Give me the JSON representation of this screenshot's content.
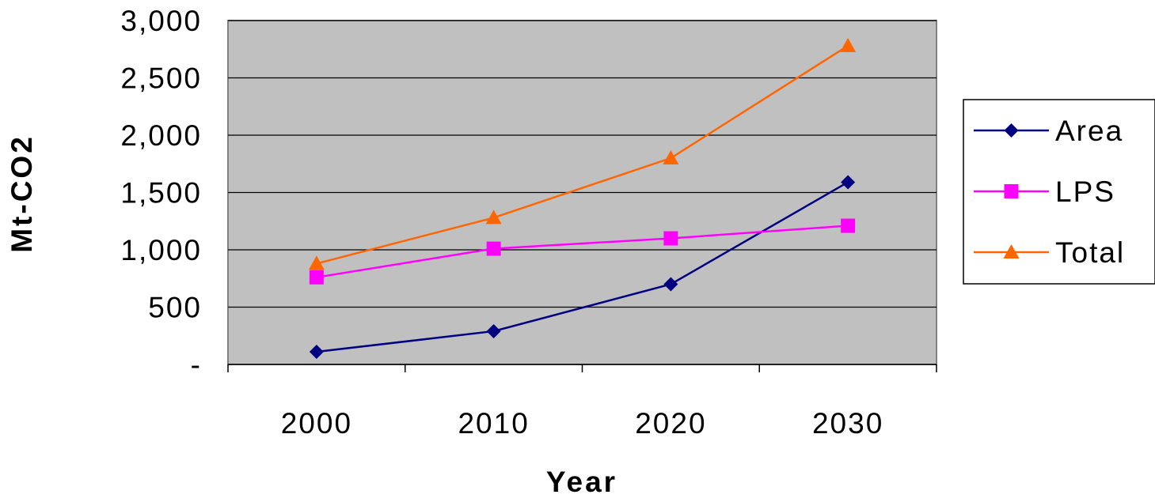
{
  "chart_data": {
    "type": "line",
    "categories": [
      "2000",
      "2010",
      "2020",
      "2030"
    ],
    "xlabel": "Year",
    "ylabel": "Mt-CO2",
    "ylim": [
      0,
      3000
    ],
    "yticks": [
      {
        "value": 0,
        "label": "-"
      },
      {
        "value": 500,
        "label": "500"
      },
      {
        "value": 1000,
        "label": "1,000"
      },
      {
        "value": 1500,
        "label": "1,500"
      },
      {
        "value": 2000,
        "label": "2,000"
      },
      {
        "value": 2500,
        "label": "2,500"
      },
      {
        "value": 3000,
        "label": "3,000"
      }
    ],
    "grid": "horizontal",
    "plot_background": "#c0c0c0",
    "legend_position": "right",
    "series": [
      {
        "name": "Area",
        "values": [
          110,
          290,
          700,
          1590
        ],
        "color": "#000080",
        "marker": "diamond"
      },
      {
        "name": "LPS",
        "values": [
          760,
          1010,
          1100,
          1210
        ],
        "color": "#ff00ff",
        "marker": "square"
      },
      {
        "name": "Total",
        "values": [
          880,
          1280,
          1800,
          2780
        ],
        "color": "#ff6600",
        "marker": "triangle"
      }
    ]
  }
}
